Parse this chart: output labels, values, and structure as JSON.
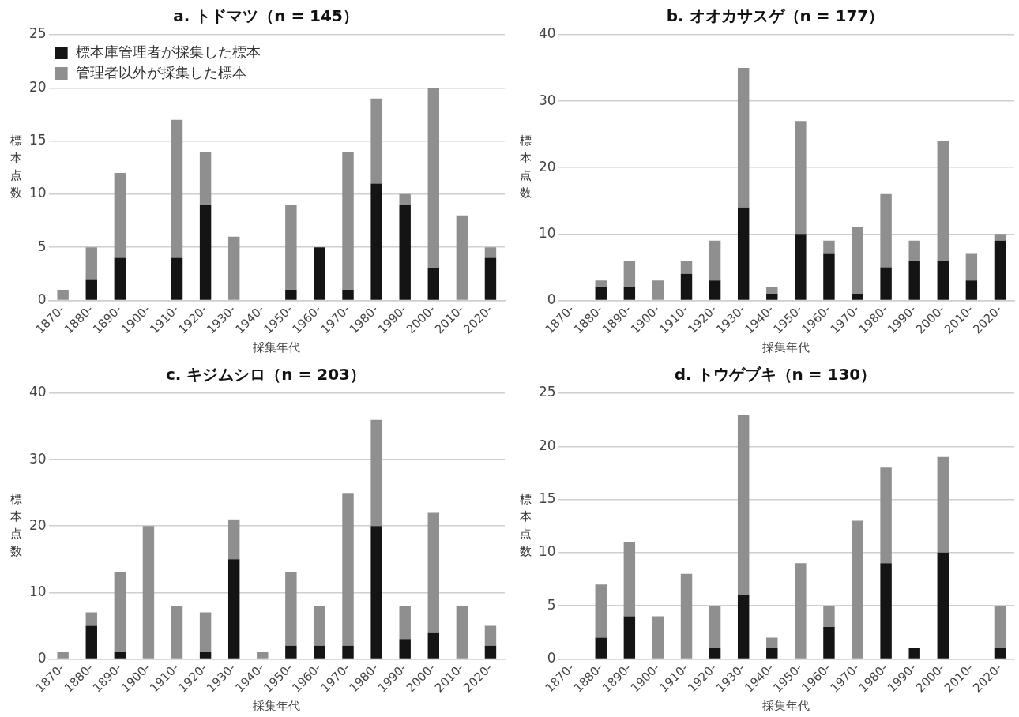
{
  "chart_data": [
    {
      "type": "bar",
      "title": "a. トドマツ（n = 145）",
      "xlabel": "採集年代",
      "ylabel": "標本点数",
      "stacked": true,
      "grid": "y",
      "legend": "top left",
      "categories": [
        "1870-",
        "1880-",
        "1890-",
        "1900-",
        "1910-",
        "1920-",
        "1930-",
        "1940-",
        "1950-",
        "1960-",
        "1970-",
        "1980-",
        "1990-",
        "2000-",
        "2010-",
        "2020-"
      ],
      "ylim": [
        0,
        25
      ],
      "yticks": [
        0,
        5,
        10,
        15,
        20,
        25
      ],
      "series": [
        {
          "name": "標本庫管理者が採集した標本",
          "color": "#141414",
          "values": [
            0,
            2,
            4,
            0,
            4,
            9,
            0,
            0,
            1,
            5,
            1,
            11,
            9,
            3,
            0,
            4
          ]
        },
        {
          "name": "管理者以外が採集した標本",
          "color": "#8f8f8f",
          "values": [
            1,
            3,
            8,
            0,
            13,
            5,
            6,
            0,
            8,
            0,
            13,
            8,
            1,
            17,
            8,
            1
          ]
        }
      ]
    },
    {
      "type": "bar",
      "title": "b. オオカサスゲ（n = 177）",
      "xlabel": "採集年代",
      "ylabel": "標本点数",
      "stacked": true,
      "grid": "y",
      "categories": [
        "1870-",
        "1880-",
        "1890-",
        "1900-",
        "1910-",
        "1920-",
        "1930-",
        "1940-",
        "1950-",
        "1960-",
        "1970-",
        "1980-",
        "1990-",
        "2000-",
        "2010-",
        "2020-"
      ],
      "ylim": [
        0,
        40
      ],
      "yticks": [
        0,
        10,
        20,
        30,
        40
      ],
      "series": [
        {
          "color": "#141414",
          "values": [
            0,
            2,
            2,
            0,
            4,
            3,
            14,
            1,
            10,
            7,
            1,
            5,
            6,
            6,
            3,
            9
          ]
        },
        {
          "color": "#8f8f8f",
          "values": [
            0,
            1,
            4,
            3,
            2,
            6,
            21,
            1,
            17,
            2,
            10,
            11,
            3,
            18,
            4,
            1
          ]
        }
      ]
    },
    {
      "type": "bar",
      "title": "c. キジムシロ（n = 203）",
      "xlabel": "採集年代",
      "ylabel": "標本点数",
      "stacked": true,
      "grid": "y",
      "categories": [
        "1870-",
        "1880-",
        "1890-",
        "1900-",
        "1910-",
        "1920-",
        "1930-",
        "1940-",
        "1950-",
        "1960-",
        "1970-",
        "1980-",
        "1990-",
        "2000-",
        "2010-",
        "2020-"
      ],
      "ylim": [
        0,
        40
      ],
      "yticks": [
        0,
        10,
        20,
        30,
        40
      ],
      "series": [
        {
          "color": "#141414",
          "values": [
            0,
            5,
            1,
            0,
            0,
            1,
            15,
            0,
            2,
            2,
            2,
            20,
            3,
            4,
            0,
            2
          ]
        },
        {
          "color": "#8f8f8f",
          "values": [
            1,
            2,
            12,
            20,
            8,
            6,
            6,
            1,
            11,
            6,
            23,
            16,
            5,
            18,
            8,
            3
          ]
        }
      ]
    },
    {
      "type": "bar",
      "title": "d. トウゲブキ（n = 130）",
      "xlabel": "採集年代",
      "ylabel": "標本点数",
      "stacked": true,
      "grid": "y",
      "categories": [
        "1870-",
        "1880-",
        "1890-",
        "1900-",
        "1910-",
        "1920-",
        "1930-",
        "1940-",
        "1950-",
        "1960-",
        "1970-",
        "1980-",
        "1990-",
        "2000-",
        "2010-",
        "2020-"
      ],
      "ylim": [
        0,
        25
      ],
      "yticks": [
        0,
        5,
        10,
        15,
        20,
        25
      ],
      "series": [
        {
          "color": "#141414",
          "values": [
            0,
            2,
            4,
            0,
            0,
            1,
            6,
            1,
            0,
            3,
            0,
            9,
            1,
            10,
            0,
            1
          ]
        },
        {
          "color": "#8f8f8f",
          "values": [
            0,
            5,
            7,
            4,
            8,
            4,
            17,
            1,
            9,
            2,
            13,
            9,
            0,
            9,
            0,
            4
          ]
        }
      ]
    }
  ]
}
